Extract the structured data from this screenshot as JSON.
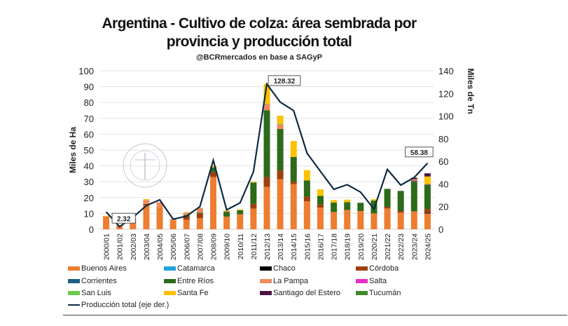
{
  "chart_data": {
    "type": "bar",
    "title_line1": "Argentina - Cultivo de colza: área sembrada por",
    "title_line2": "provincia y producción total",
    "subtitle": "@BCRmercados en base a SAGyP",
    "ylabel": "Miles de Ha",
    "y2label": "Miles de Tn",
    "ylim": [
      0,
      100
    ],
    "y2lim": [
      0,
      140
    ],
    "yticks": [
      0,
      10,
      20,
      30,
      40,
      50,
      60,
      70,
      80,
      90,
      100
    ],
    "y2ticks": [
      0,
      20,
      40,
      60,
      80,
      100,
      120,
      140
    ],
    "grid": true,
    "legend_placement": "bottom",
    "stacked": true,
    "categories": [
      "2000/01",
      "2001/02",
      "2002/03",
      "2003/04",
      "2004/05",
      "2005/06",
      "2006/07",
      "2007/08",
      "2008/09",
      "2009/10",
      "2010/11",
      "2011/12",
      "2012/13",
      "2013/14",
      "2014/15",
      "2015/16",
      "2016/17",
      "2017/18",
      "2018/19",
      "2019/20",
      "2020/21",
      "2021/22",
      "2022/23",
      "2023/24",
      "2024/25"
    ],
    "series": [
      {
        "name": "Buenos Aires",
        "color": "#ED7D31",
        "values": [
          8,
          2.5,
          7,
          15,
          14,
          5.5,
          6,
          7,
          33,
          8,
          9.5,
          13,
          26.7,
          31.6,
          28.5,
          17.6,
          13.7,
          10.9,
          12.2,
          11.5,
          10,
          13.1,
          10.5,
          11.2,
          10
        ]
      },
      {
        "name": "Catamarca",
        "color": "#1FA3DC",
        "values": [
          0,
          0,
          0,
          0,
          0,
          0,
          0,
          0,
          0,
          0,
          0,
          0,
          0,
          0,
          0,
          0,
          0,
          0,
          0,
          0,
          0,
          0,
          0,
          0,
          0
        ]
      },
      {
        "name": "Chaco",
        "color": "#000000",
        "values": [
          0,
          0,
          0,
          0,
          0,
          0,
          0,
          0,
          0,
          0,
          0,
          0,
          0,
          0,
          0,
          0,
          0,
          0,
          0,
          0,
          0,
          0,
          0,
          0,
          0.5
        ]
      },
      {
        "name": "Córdoba",
        "color": "#9E3F0E",
        "values": [
          0,
          0,
          0,
          1,
          0,
          0,
          2,
          3,
          3,
          0,
          0,
          3,
          6.3,
          5.4,
          1.5,
          2.9,
          1.9,
          0,
          0,
          0,
          0,
          1.1,
          1,
          0,
          2.3
        ]
      },
      {
        "name": "Corrientes",
        "color": "#1B5E85",
        "values": [
          0,
          0,
          0,
          0,
          0,
          0,
          0,
          0,
          0,
          0,
          0,
          0,
          0,
          0,
          0,
          0,
          0,
          0,
          0,
          0,
          0,
          0,
          0,
          0,
          0
        ]
      },
      {
        "name": "Entre Ríos",
        "color": "#2D6A1A",
        "values": [
          0,
          0,
          0,
          0,
          0,
          0,
          1,
          0.5,
          3,
          3,
          2.5,
          13.5,
          42,
          26.3,
          15.6,
          10.3,
          5.5,
          5.9,
          4.9,
          5.2,
          8.1,
          11.3,
          12.7,
          19.2,
          15.4
        ]
      },
      {
        "name": "La Pampa",
        "color": "#F08B5E",
        "values": [
          0,
          0,
          0,
          2.5,
          3,
          1,
          1.5,
          3,
          0.5,
          0.5,
          0,
          0,
          4,
          2.9,
          0,
          0,
          0,
          0,
          0,
          0,
          0,
          0,
          0,
          0,
          0
        ]
      },
      {
        "name": "Salta",
        "color": "#E62FC4",
        "values": [
          0,
          0,
          0,
          0,
          0,
          0,
          0,
          0,
          0,
          0,
          0,
          0,
          0,
          0,
          0,
          0,
          0,
          0,
          0,
          0,
          0,
          0,
          0,
          0.6,
          0.3
        ]
      },
      {
        "name": "San Luis",
        "color": "#6CCB4A",
        "values": [
          0,
          0,
          0,
          0,
          0,
          0,
          0,
          0,
          0,
          0,
          0,
          0,
          0.3,
          0.5,
          0,
          0,
          0,
          0,
          0,
          0,
          0,
          0,
          0,
          0,
          0
        ]
      },
      {
        "name": "Santa Fe",
        "color": "#FFC000",
        "values": [
          0.5,
          0,
          0,
          0.5,
          0,
          0,
          0.3,
          0,
          0.5,
          0.3,
          0.5,
          0.5,
          12.3,
          5,
          10.1,
          6.5,
          4.1,
          1.6,
          1.6,
          0,
          0.9,
          0,
          0,
          0.5,
          4.8
        ]
      },
      {
        "name": "Santiago del Estero",
        "color": "#4A1545",
        "values": [
          0,
          0,
          0,
          0,
          0,
          0,
          0,
          0,
          0,
          0,
          0,
          0,
          0,
          0,
          0,
          0,
          0,
          0,
          0,
          0,
          0,
          0,
          0,
          1,
          2
        ]
      },
      {
        "name": "Tucumán",
        "color": "#3F8A2A",
        "values": [
          0,
          0,
          0,
          0,
          0,
          0,
          0,
          0,
          0,
          0,
          0,
          0,
          0,
          0,
          0,
          0,
          0,
          0,
          0,
          0,
          0,
          0,
          0,
          0,
          0
        ]
      }
    ],
    "line": {
      "name": "Producción total (eje der.)",
      "color": "#0E2A43",
      "axis": "right",
      "values": [
        15.3,
        2.32,
        10.5,
        20.9,
        26,
        8.9,
        11.6,
        20,
        61,
        17.1,
        23.3,
        50.8,
        128.32,
        112.3,
        104.9,
        67.3,
        51.2,
        35.3,
        39.4,
        32.8,
        17.8,
        52.9,
        39,
        45.7,
        58.38
      ]
    },
    "annotations": [
      {
        "category": "2001/02",
        "text": "2.32"
      },
      {
        "category": "2012/13",
        "text": "128.32"
      },
      {
        "category": "2024/25",
        "text": "58.38"
      }
    ],
    "watermark": "BOLSA DE COMERCIO DE ROSARIO"
  }
}
